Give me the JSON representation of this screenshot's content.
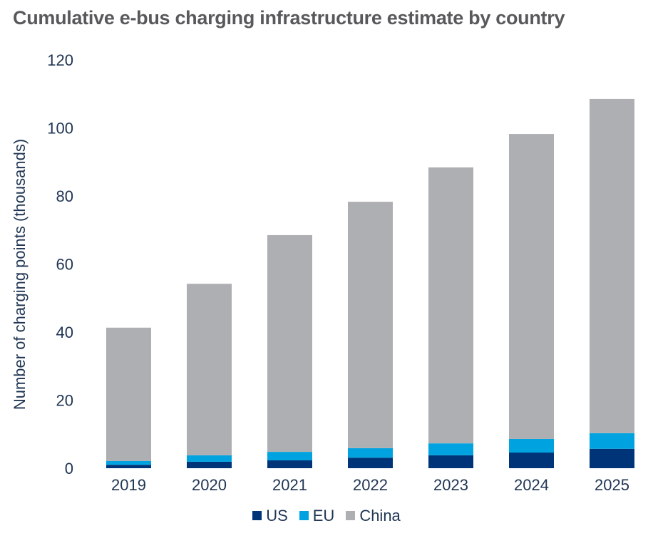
{
  "chart_data": {
    "type": "bar",
    "stacked": true,
    "title": "Cumulative e-bus charging infrastructure estimate by country",
    "xlabel": "",
    "ylabel": "Number of charging points (thousands)",
    "ylim": [
      0,
      120
    ],
    "yticks": [
      0,
      20,
      40,
      60,
      80,
      100,
      120
    ],
    "grid": false,
    "legend_position": "bottom",
    "categories": [
      "2019",
      "2020",
      "2021",
      "2022",
      "2023",
      "2024",
      "2025"
    ],
    "series": [
      {
        "name": "US",
        "color": "#003478",
        "values": [
          1.0,
          1.9,
          2.3,
          3.1,
          3.8,
          4.6,
          5.7
        ]
      },
      {
        "name": "EU",
        "color": "#00A3E0",
        "values": [
          1.1,
          1.9,
          2.5,
          2.8,
          3.5,
          4.0,
          4.6
        ]
      },
      {
        "name": "China",
        "color": "#ADAFB2",
        "values": [
          39.2,
          50.4,
          63.7,
          72.4,
          81.1,
          89.6,
          98.2
        ]
      }
    ]
  }
}
